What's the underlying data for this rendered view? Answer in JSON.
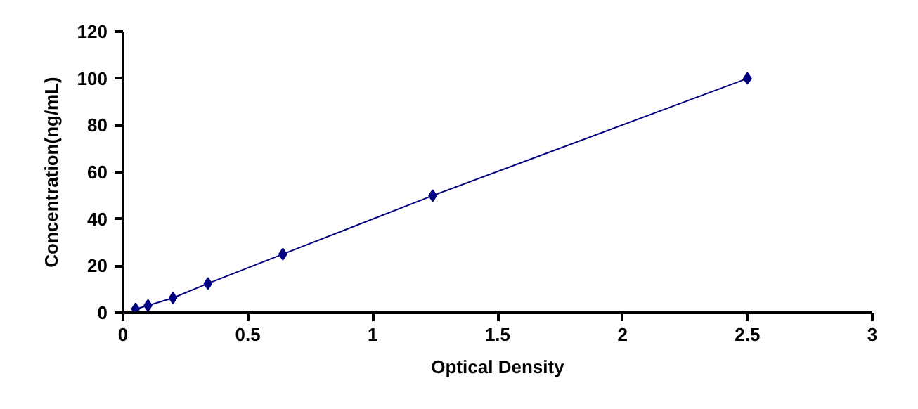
{
  "chart_data": {
    "type": "line",
    "xlabel": "Optical Density",
    "ylabel": "Concentration(ng/mL)",
    "x": [
      0.05,
      0.1,
      0.2,
      0.34,
      0.64,
      1.24,
      2.5
    ],
    "series": [
      {
        "color": "#000080",
        "values": [
          1.6,
          3.1,
          6.3,
          12.5,
          25,
          50,
          100
        ]
      }
    ],
    "xlim": [
      0,
      3
    ],
    "ylim": [
      0,
      120
    ],
    "xticks": [
      0,
      0.5,
      1,
      1.5,
      2,
      2.5,
      3
    ],
    "yticks": [
      0,
      20,
      40,
      60,
      80,
      100,
      120
    ],
    "marker": "diamond",
    "line_style": "solid",
    "grid": false
  }
}
